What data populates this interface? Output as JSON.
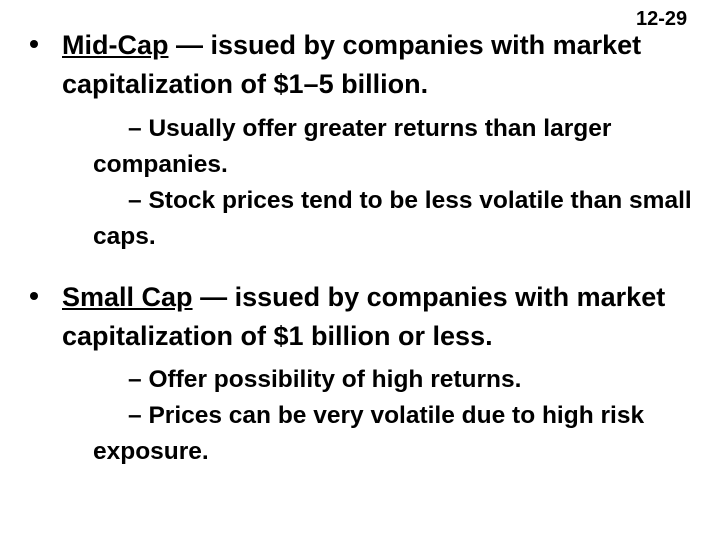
{
  "page_number": "12-29",
  "bullets": [
    {
      "term": "Mid-Cap",
      "text": "— issued by companies with market capitalization of $1–5 billion.",
      "sub_bullets": [
        "Usually offer greater returns than larger companies.",
        "Stock prices tend to be less volatile than small caps."
      ]
    },
    {
      "term": "Small Cap",
      "text": "— issued by companies with market capitalization of $1 billion or less.",
      "sub_bullets": [
        "Offer possibility of high returns.",
        "Prices can be very volatile due to high risk exposure."
      ]
    }
  ]
}
